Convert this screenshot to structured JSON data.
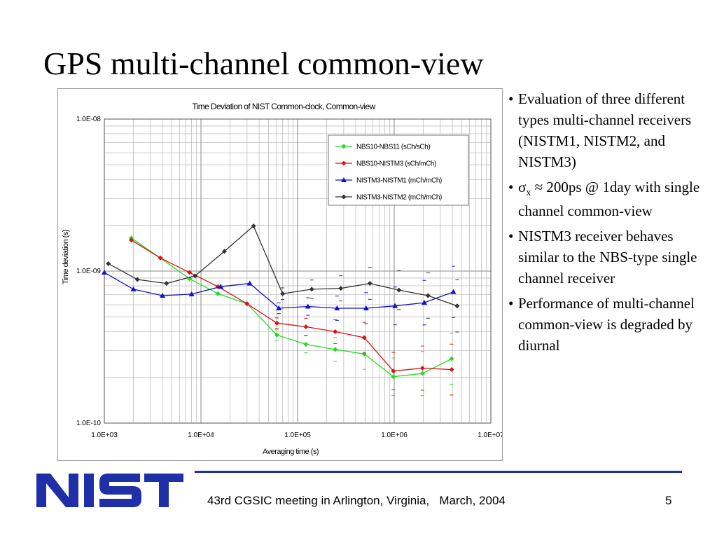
{
  "slide": {
    "title": "GPS multi-channel common-view",
    "bullets": [
      "Evaluation of three different types multi-channel receivers (NISTM1, NISTM2, and NISTM3)",
      "NISTM3 receiver behaves similar to the NBS-type single channel receiver",
      "Performance of multi-channel common-view is degraded by diurnal"
    ],
    "sigma_bullet": {
      "symbol": "σ",
      "subscript": "x",
      "rest": " ≈ 200ps @ 1day with single channel common-view"
    },
    "footer": "43rd CGSIC meeting in Arlington, Virginia,   March, 2004",
    "page_number": "5",
    "logo_text": "NIST",
    "logo_color": "#1f2fa8"
  },
  "chart_data": {
    "type": "line",
    "title": "Time Deviation of NIST Common-clock, Common-view",
    "xlabel": "Averaging time (s)",
    "ylabel": "Time deviation (s)",
    "x_scale": "log",
    "y_scale": "log",
    "xlim": [
      1000,
      10000000
    ],
    "ylim": [
      1e-10,
      1e-08
    ],
    "x_tick_labels": [
      "1.0E+03",
      "1.0E+04",
      "1.0E+05",
      "1.0E+06",
      "1.0E+07"
    ],
    "x_tick_values": [
      1000,
      10000,
      100000,
      1000000,
      10000000
    ],
    "y_tick_labels": [
      "1.0E-08",
      "1.0E-09",
      "1.0E-10"
    ],
    "y_tick_values": [
      1e-08,
      1e-09,
      1e-10
    ],
    "grid": true,
    "legend_position": "top-right",
    "series": [
      {
        "name": "NBS10-NBS11 (sCh/sCh)",
        "color": "#22dd22",
        "marker": "diamond",
        "x": [
          1900,
          3800,
          7600,
          15000,
          30000,
          61000,
          122000,
          245000,
          490000,
          980000,
          1960000,
          3930000
        ],
        "y": [
          1.65e-09,
          1.22e-09,
          8.9e-10,
          7.1e-10,
          6.1e-10,
          3.8e-10,
          3.3e-10,
          3.05e-10,
          2.85e-10,
          2.02e-10,
          2.12e-10,
          2.65e-10
        ]
      },
      {
        "name": "NBS10-NISTM3 (sCh/mCh)",
        "color": "#dd1111",
        "marker": "diamond",
        "x": [
          1900,
          3800,
          7600,
          15000,
          30000,
          61000,
          122000,
          245000,
          490000,
          980000,
          1960000,
          3930000
        ],
        "y": [
          1.6e-09,
          1.22e-09,
          9.8e-10,
          7.9e-10,
          6.1e-10,
          4.55e-10,
          4.3e-10,
          4e-10,
          3.65e-10,
          2.2e-10,
          2.3e-10,
          2.25e-10
        ]
      },
      {
        "name": "NISTM3-NISTM1 (mCh/mCh)",
        "color": "#1111cc",
        "marker": "triangle",
        "x": [
          1000,
          2000,
          4000,
          8000,
          16000,
          32000,
          64000,
          128000,
          256000,
          512000,
          1020000,
          2050000,
          4100000
        ],
        "y": [
          9.8e-10,
          7.6e-10,
          6.9e-10,
          7.05e-10,
          7.9e-10,
          8.3e-10,
          5.7e-10,
          5.85e-10,
          5.7e-10,
          5.7e-10,
          5.9e-10,
          6.2e-10,
          7.3e-10
        ]
      },
      {
        "name": "NISTM3-NISTM2 (mCh/mCh)",
        "color": "#333333",
        "marker": "diamond",
        "x": [
          1100,
          2200,
          4400,
          8700,
          17500,
          35000,
          70000,
          140000,
          280000,
          560000,
          1120000,
          2240000,
          4480000
        ],
        "y": [
          1.12e-09,
          8.8e-10,
          8.3e-10,
          9.3e-10,
          1.35e-09,
          1.98e-09,
          7.1e-10,
          7.6e-10,
          7.7e-10,
          8.3e-10,
          7.5e-10,
          6.9e-10,
          5.9e-10
        ]
      }
    ]
  }
}
